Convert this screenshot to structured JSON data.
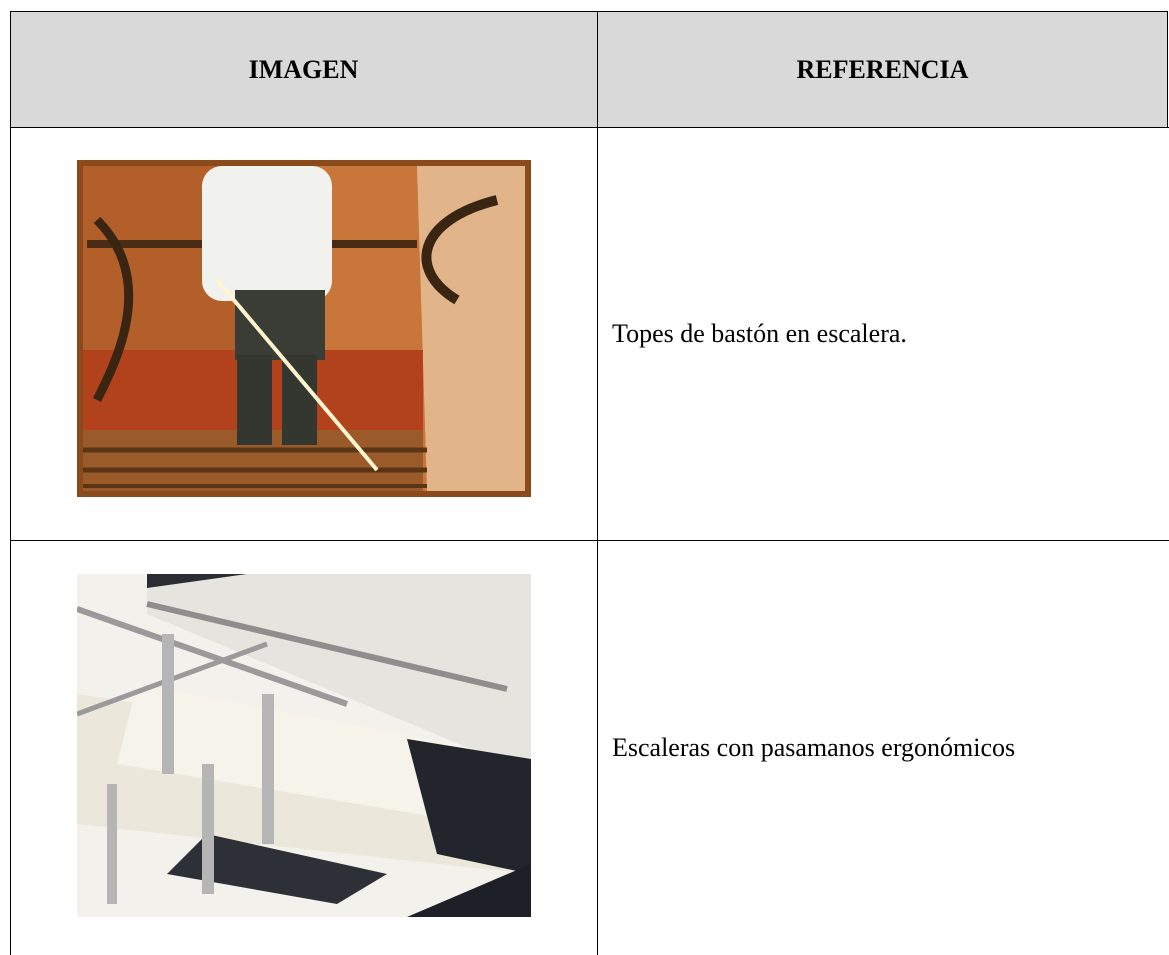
{
  "table": {
    "header": [
      "IMAGEN",
      "REFERENCIA"
    ],
    "rows": [
      [
        "Topes de bastón en escalera."
      ],
      [
        "Escaleras con pasamanos ergonómicos"
      ]
    ]
  }
}
